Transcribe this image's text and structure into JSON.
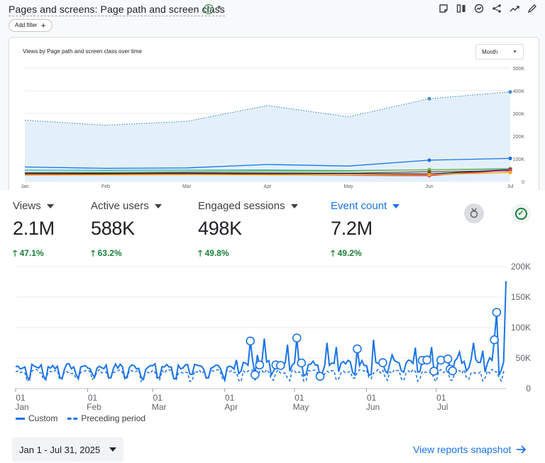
{
  "header": {
    "title": "Pages and screens: Page path and screen class",
    "add_filter_label": "Add filter",
    "toolbar_icons": [
      "notes-icon",
      "compare-icon",
      "insights-icon",
      "share-icon",
      "trend-icon",
      "edit-icon"
    ]
  },
  "over_time_chart": {
    "title": "Views by Page path and screen class over time",
    "granularity": "Month",
    "chart_data": {
      "type": "line",
      "categories": [
        "Jan",
        "Feb",
        "Mar",
        "Apr",
        "May",
        "Jun",
        "Jul"
      ],
      "y_tick_labels": [
        "500K",
        "400K",
        "300K",
        "200K",
        "100K",
        "0"
      ],
      "ylim": [
        0,
        500000
      ],
      "series": [
        {
          "name": "",
          "color": "#4a90c9",
          "style": "dotted-area",
          "values": [
            270000,
            248000,
            265000,
            335000,
            285000,
            365000,
            395000
          ]
        },
        {
          "name": "",
          "color": "#1a73e8",
          "values": [
            64000,
            58000,
            60000,
            75000,
            68000,
            94000,
            102000
          ]
        },
        {
          "name": "",
          "color": "#12b5cb",
          "values": [
            50000,
            49000,
            50000,
            51000,
            48000,
            52000,
            54000
          ]
        },
        {
          "name": "",
          "color": "#7cb342",
          "values": [
            40000,
            41000,
            43000,
            46000,
            46000,
            52000,
            57000
          ]
        },
        {
          "name": "",
          "color": "#795548",
          "values": [
            38000,
            37000,
            39000,
            38000,
            37000,
            43000,
            47000
          ]
        },
        {
          "name": "",
          "color": "#202124",
          "values": [
            35000,
            35000,
            36000,
            34000,
            35000,
            33000,
            52000
          ]
        },
        {
          "name": "",
          "color": "#e52592",
          "values": [
            30000,
            31000,
            32000,
            30000,
            27000,
            26000,
            50000
          ]
        },
        {
          "name": "",
          "color": "#f9ab00",
          "values": [
            28000,
            29000,
            30000,
            29000,
            28000,
            30000,
            40000
          ]
        }
      ]
    }
  },
  "metrics": [
    {
      "label": "Views",
      "value": "2.1M",
      "delta": "47.1%",
      "active": false
    },
    {
      "label": "Active users",
      "value": "588K",
      "delta": "63.2%",
      "active": false
    },
    {
      "label": "Engaged sessions",
      "value": "498K",
      "delta": "49.8%",
      "active": false
    },
    {
      "label": "Event count",
      "value": "7.2M",
      "delta": "49.2%",
      "active": true
    }
  ],
  "event_chart": {
    "chart_data": {
      "type": "line",
      "x_tick_labels": [
        {
          "day": "01",
          "month": "Jan"
        },
        {
          "day": "01",
          "month": "Feb"
        },
        {
          "day": "01",
          "month": "Mar"
        },
        {
          "day": "01",
          "month": "Apr"
        },
        {
          "day": "01",
          "month": "May"
        },
        {
          "day": "01",
          "month": "Jun"
        },
        {
          "day": "01",
          "month": "Jul"
        }
      ],
      "y_tick_labels": [
        "200K",
        "150K",
        "100K",
        "50K",
        "0"
      ],
      "ylim": [
        0,
        200000
      ],
      "x_range": [
        "2025-01-01",
        "2025-07-31"
      ],
      "series": [
        {
          "name": "Custom",
          "style": "solid",
          "color": "#1a73e8"
        },
        {
          "name": "Preceding period",
          "style": "dashed",
          "color": "#1a73e8"
        }
      ],
      "anomaly_markers_count": 19
    },
    "legend": {
      "custom": "Custom",
      "preceding": "Preceding period"
    }
  },
  "footer": {
    "date_range": "Jan 1 - Jul 31, 2025",
    "snapshot_link": "View reports snapshot"
  }
}
